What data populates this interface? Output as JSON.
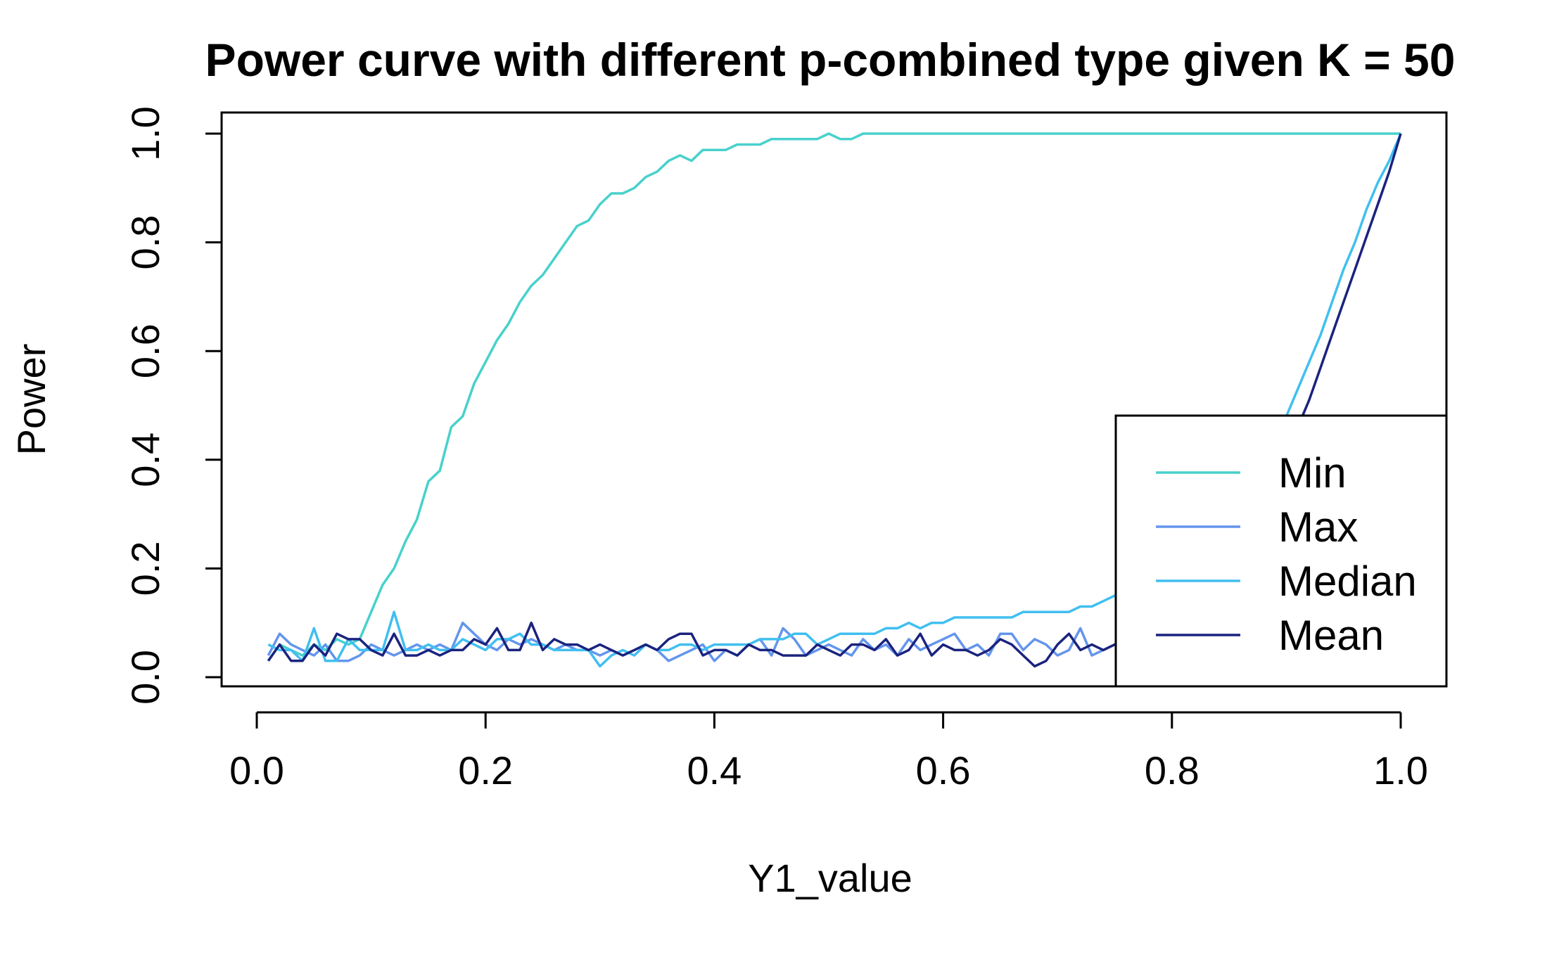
{
  "chart_data": {
    "type": "line",
    "title": "Power curve with different p-combined type given K = 50",
    "xlabel": "Y1_value",
    "ylabel": "Power",
    "xlim": [
      0,
      1
    ],
    "ylim": [
      0,
      1
    ],
    "xticks": [
      "0.0",
      "0.2",
      "0.4",
      "0.6",
      "0.8",
      "1.0"
    ],
    "yticks": [
      "0.0",
      "0.2",
      "0.4",
      "0.6",
      "0.8",
      "1.0"
    ],
    "grid": false,
    "legend_position": "bottom-right",
    "x": [
      0.01,
      0.02,
      0.03,
      0.04,
      0.05,
      0.06,
      0.07,
      0.08,
      0.09,
      0.1,
      0.11,
      0.12,
      0.13,
      0.14,
      0.15,
      0.16,
      0.17,
      0.18,
      0.19,
      0.2,
      0.21,
      0.22,
      0.23,
      0.24,
      0.25,
      0.26,
      0.27,
      0.28,
      0.29,
      0.3,
      0.31,
      0.32,
      0.33,
      0.34,
      0.35,
      0.36,
      0.37,
      0.38,
      0.39,
      0.4,
      0.41,
      0.42,
      0.43,
      0.44,
      0.45,
      0.46,
      0.47,
      0.48,
      0.49,
      0.5,
      0.51,
      0.52,
      0.53,
      0.54,
      0.55,
      0.56,
      0.57,
      0.58,
      0.59,
      0.6,
      0.61,
      0.62,
      0.63,
      0.64,
      0.65,
      0.66,
      0.67,
      0.68,
      0.69,
      0.7,
      0.71,
      0.72,
      0.73,
      0.74,
      0.75,
      0.76,
      0.77,
      0.78,
      0.79,
      0.8,
      0.81,
      0.82,
      0.83,
      0.84,
      0.85,
      0.86,
      0.87,
      0.88,
      0.89,
      0.9,
      0.91,
      0.92,
      0.93,
      0.94,
      0.95,
      0.96,
      0.97,
      0.98,
      0.99,
      1.0
    ],
    "series": [
      {
        "name": "Min",
        "color": "#48D1CC",
        "values": [
          0.03,
          0.06,
          0.05,
          0.04,
          0.06,
          0.05,
          0.07,
          0.06,
          0.07,
          0.12,
          0.17,
          0.2,
          0.25,
          0.29,
          0.36,
          0.38,
          0.46,
          0.48,
          0.54,
          0.58,
          0.62,
          0.65,
          0.69,
          0.72,
          0.74,
          0.77,
          0.8,
          0.83,
          0.84,
          0.87,
          0.89,
          0.89,
          0.9,
          0.92,
          0.93,
          0.95,
          0.96,
          0.95,
          0.97,
          0.97,
          0.97,
          0.98,
          0.98,
          0.98,
          0.99,
          0.99,
          0.99,
          0.99,
          0.99,
          1.0,
          0.99,
          0.99,
          1.0,
          1.0,
          1.0,
          1.0,
          1.0,
          1.0,
          1.0,
          1.0,
          1.0,
          1.0,
          1.0,
          1.0,
          1.0,
          1.0,
          1.0,
          1.0,
          1.0,
          1.0,
          1.0,
          1.0,
          1.0,
          1.0,
          1.0,
          1.0,
          1.0,
          1.0,
          1.0,
          1.0,
          1.0,
          1.0,
          1.0,
          1.0,
          1.0,
          1.0,
          1.0,
          1.0,
          1.0,
          1.0,
          1.0,
          1.0,
          1.0,
          1.0,
          1.0,
          1.0,
          1.0,
          1.0,
          1.0,
          1.0
        ]
      },
      {
        "name": "Max",
        "color": "#6495ED",
        "values": [
          0.04,
          0.08,
          0.06,
          0.05,
          0.04,
          0.06,
          0.03,
          0.03,
          0.04,
          0.06,
          0.05,
          0.04,
          0.05,
          0.06,
          0.05,
          0.06,
          0.05,
          0.1,
          0.08,
          0.06,
          0.05,
          0.07,
          0.06,
          0.07,
          0.06,
          0.05,
          0.06,
          0.05,
          0.05,
          0.04,
          0.05,
          0.04,
          0.05,
          0.06,
          0.05,
          0.03,
          0.04,
          0.05,
          0.06,
          0.03,
          0.05,
          0.04,
          0.06,
          0.07,
          0.04,
          0.09,
          0.07,
          0.04,
          0.05,
          0.06,
          0.05,
          0.04,
          0.07,
          0.05,
          0.06,
          0.04,
          0.07,
          0.05,
          0.06,
          0.07,
          0.08,
          0.05,
          0.06,
          0.04,
          0.08,
          0.08,
          0.05,
          0.07,
          0.06,
          0.04,
          0.05,
          0.09,
          0.04,
          0.05,
          0.06,
          0.05,
          0.07,
          0.06,
          0.05,
          0.07,
          0.06,
          0.05,
          0.04,
          0.06,
          0.05,
          0.07,
          0.05,
          0.06,
          0.05,
          0.04,
          0.06,
          0.05,
          0.07,
          0.05,
          0.06,
          0.05,
          0.06,
          0.05,
          0.06,
          0.05
        ]
      },
      {
        "name": "Median",
        "color": "#40BFF0",
        "values": [
          0.06,
          0.05,
          0.05,
          0.03,
          0.09,
          0.03,
          0.03,
          0.07,
          0.05,
          0.05,
          0.05,
          0.12,
          0.05,
          0.05,
          0.06,
          0.05,
          0.05,
          0.07,
          0.06,
          0.05,
          0.07,
          0.07,
          0.08,
          0.06,
          0.06,
          0.05,
          0.05,
          0.05,
          0.05,
          0.02,
          0.04,
          0.05,
          0.04,
          0.06,
          0.05,
          0.05,
          0.06,
          0.06,
          0.05,
          0.06,
          0.06,
          0.06,
          0.06,
          0.07,
          0.07,
          0.07,
          0.08,
          0.08,
          0.06,
          0.07,
          0.08,
          0.08,
          0.08,
          0.08,
          0.09,
          0.09,
          0.1,
          0.09,
          0.1,
          0.1,
          0.11,
          0.11,
          0.11,
          0.11,
          0.11,
          0.11,
          0.12,
          0.12,
          0.12,
          0.12,
          0.12,
          0.13,
          0.13,
          0.14,
          0.15,
          0.16,
          0.17,
          0.18,
          0.19,
          0.2,
          0.22,
          0.24,
          0.26,
          0.28,
          0.3,
          0.33,
          0.36,
          0.4,
          0.44,
          0.48,
          0.53,
          0.58,
          0.63,
          0.69,
          0.75,
          0.8,
          0.86,
          0.91,
          0.95,
          1.0
        ]
      },
      {
        "name": "Mean",
        "color": "#1A237E",
        "values": [
          0.03,
          0.06,
          0.03,
          0.03,
          0.06,
          0.04,
          0.08,
          0.07,
          0.07,
          0.05,
          0.04,
          0.08,
          0.04,
          0.04,
          0.05,
          0.04,
          0.05,
          0.05,
          0.07,
          0.06,
          0.09,
          0.05,
          0.05,
          0.1,
          0.05,
          0.07,
          0.06,
          0.06,
          0.05,
          0.06,
          0.05,
          0.04,
          0.05,
          0.06,
          0.05,
          0.07,
          0.08,
          0.08,
          0.04,
          0.05,
          0.05,
          0.04,
          0.06,
          0.05,
          0.05,
          0.04,
          0.04,
          0.04,
          0.06,
          0.05,
          0.04,
          0.06,
          0.06,
          0.05,
          0.07,
          0.04,
          0.05,
          0.08,
          0.04,
          0.06,
          0.05,
          0.05,
          0.04,
          0.05,
          0.07,
          0.06,
          0.04,
          0.02,
          0.03,
          0.06,
          0.08,
          0.05,
          0.06,
          0.05,
          0.06,
          0.08,
          0.09,
          0.1,
          0.11,
          0.12,
          0.14,
          0.16,
          0.18,
          0.2,
          0.23,
          0.26,
          0.29,
          0.33,
          0.37,
          0.41,
          0.46,
          0.51,
          0.57,
          0.63,
          0.69,
          0.75,
          0.81,
          0.87,
          0.93,
          1.0
        ]
      }
    ]
  }
}
